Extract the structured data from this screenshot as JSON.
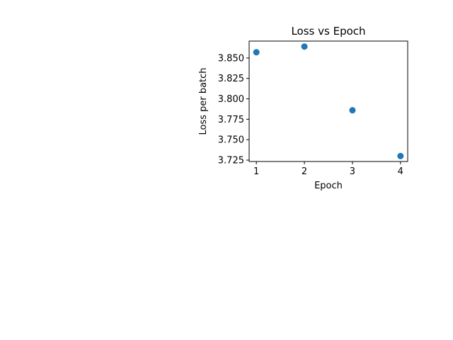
{
  "chart_data": {
    "type": "scatter",
    "title": "Loss vs Epoch",
    "xlabel": "Epoch",
    "ylabel": "Loss per batch",
    "x": [
      1,
      2,
      3,
      4
    ],
    "y": [
      3.857,
      3.864,
      3.786,
      3.73
    ],
    "xlim": [
      0.85,
      4.15
    ],
    "ylim": [
      3.7233,
      3.8707
    ],
    "xticks": [
      1,
      2,
      3,
      4
    ],
    "xtick_labels": [
      "1",
      "2",
      "3",
      "4"
    ],
    "yticks": [
      3.725,
      3.75,
      3.775,
      3.8,
      3.825,
      3.85
    ],
    "ytick_labels": [
      "3.725",
      "3.750",
      "3.775",
      "3.800",
      "3.825",
      "3.850"
    ],
    "grid": false,
    "marker_color": "#1f77b4"
  }
}
